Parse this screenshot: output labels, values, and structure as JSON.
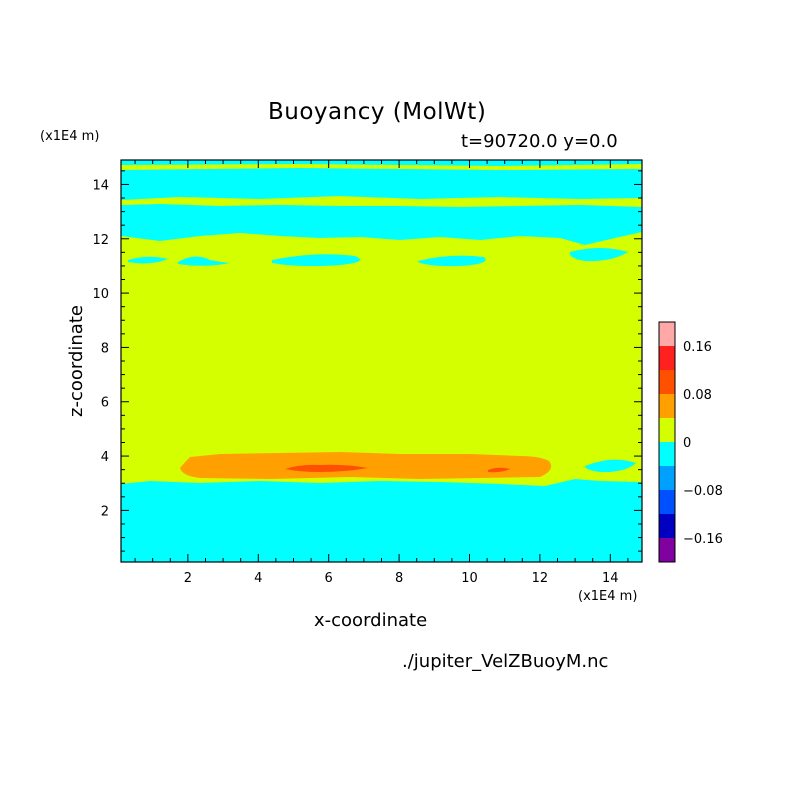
{
  "chart_data": {
    "type": "heatmap",
    "title": "Buoyancy (MolWt)",
    "subtitle": "t=90720.0 y=0.0",
    "xlabel": "x-coordinate",
    "ylabel": "z-coordinate",
    "x_unit_label": "(x1E4 m)",
    "y_unit_label": "(x1E4 m)",
    "xlim": [
      0.1,
      14.9
    ],
    "ylim": [
      0.1,
      14.9
    ],
    "x_ticks": [
      2,
      4,
      6,
      8,
      10,
      12,
      14
    ],
    "y_ticks": [
      2,
      4,
      6,
      8,
      10,
      12,
      14
    ],
    "x_tick_labels": [
      "2",
      "4",
      "6",
      "8",
      "10",
      "12",
      "14"
    ],
    "y_tick_labels": [
      "2",
      "4",
      "6",
      "8",
      "10",
      "12",
      "14"
    ],
    "colorbar": {
      "levels": [
        -0.2,
        -0.16,
        -0.12,
        -0.08,
        -0.04,
        0,
        0.04,
        0.08,
        0.12,
        0.16,
        0.2
      ],
      "colors": [
        "#8000a0",
        "#0000c0",
        "#0050ff",
        "#00a0ff",
        "#00ffff",
        "#d4ff00",
        "#ffa000",
        "#ff5000",
        "#ff2020",
        "#ffa8a8"
      ],
      "tick_values": [
        -0.16,
        -0.08,
        0,
        0.08,
        0.16
      ],
      "tick_labels": [
        "−0.16",
        "−0.08",
        "0",
        "0.08",
        "0.16"
      ]
    },
    "regions": [
      {
        "name": "lower-negative-layer",
        "level": "-0.04 to 0",
        "z_range": [
          0.1,
          3.0
        ]
      },
      {
        "name": "main-near-zero-layer",
        "level": "0 to 0.04",
        "z_range": [
          3.0,
          12.2
        ]
      },
      {
        "name": "positive-band",
        "level": "0.04 to 0.08",
        "x_range": [
          1.6,
          12.5
        ],
        "z_range": [
          3.3,
          4.0
        ]
      },
      {
        "name": "peak-patch-1",
        "level": "0.08 to 0.12",
        "x_range": [
          4.6,
          7.3
        ],
        "z_range": [
          3.45,
          3.7
        ]
      },
      {
        "name": "peak-patch-2",
        "level": "0.08 to 0.12",
        "x_range": [
          10.6,
          11.2
        ],
        "z_range": [
          3.45,
          3.65
        ]
      },
      {
        "name": "upper-negative-layer",
        "level": "-0.04 to 0",
        "z_range": [
          12.0,
          14.9
        ]
      }
    ],
    "grid": false,
    "legend": "colorbar-right"
  },
  "source_file": "./jupiter_VelZBuoyM.nc"
}
